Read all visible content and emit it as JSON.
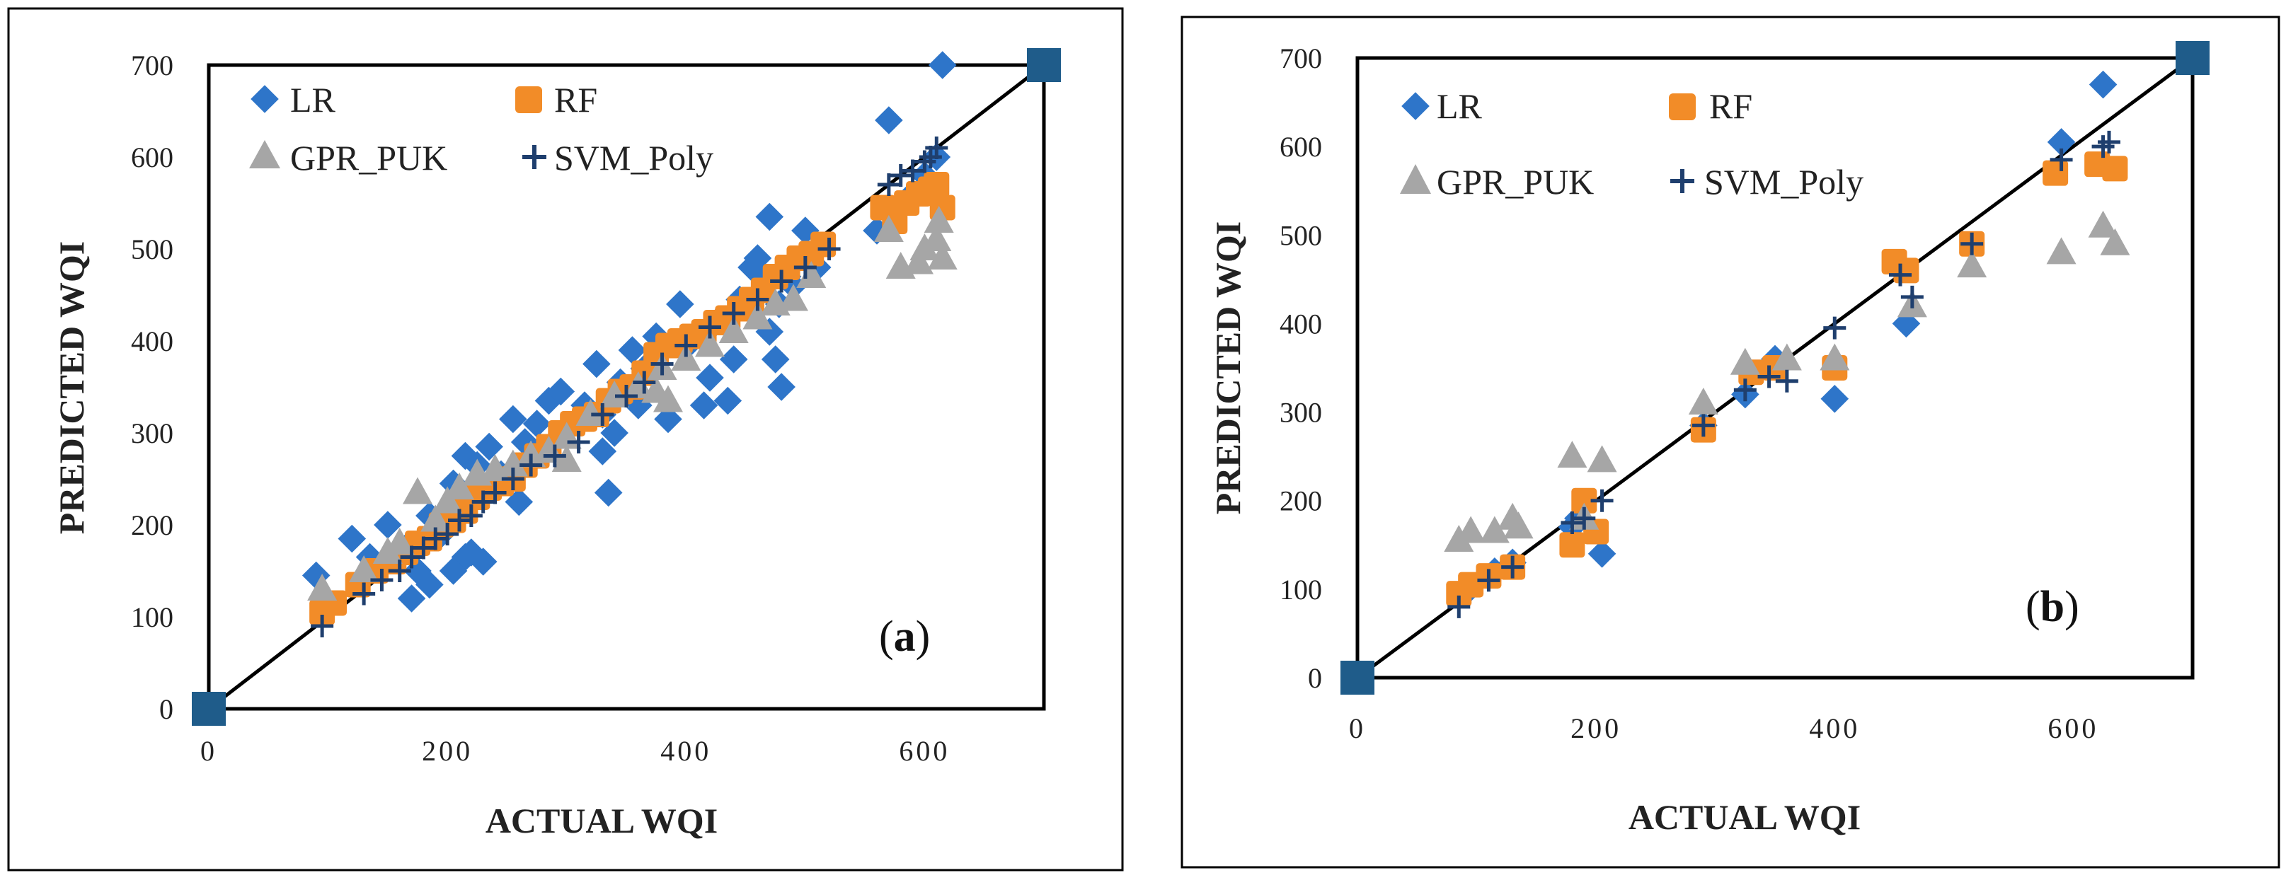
{
  "chart_data": [
    {
      "type": "scatter",
      "panel_label": "(a)",
      "panel_label_open": "(",
      "panel_label_letter": "a",
      "panel_label_close": ")",
      "xlabel": "ACTUAL WQI",
      "ylabel": "PREDICTED WQI",
      "xlim": [
        0,
        700
      ],
      "ylim": [
        0,
        700
      ],
      "xticks": [
        "0",
        "200",
        "400",
        "600"
      ],
      "yticks": [
        "0",
        "100",
        "200",
        "300",
        "400",
        "500",
        "600",
        "700"
      ],
      "legend": [
        "LR",
        "RF",
        "GPR_PUK",
        "SVM_Poly"
      ],
      "reference_line": [
        [
          0,
          0
        ],
        [
          700,
          700
        ]
      ],
      "series": [
        {
          "name": "LR",
          "color": "#2E75C9",
          "marker": "diamond",
          "x": [
            90,
            120,
            135,
            150,
            165,
            175,
            185,
            195,
            205,
            215,
            225,
            235,
            245,
            255,
            265,
            275,
            285,
            295,
            315,
            325,
            330,
            335,
            345,
            355,
            365,
            375,
            385,
            395,
            405,
            415,
            425,
            435,
            445,
            455,
            460,
            465,
            470,
            475,
            480,
            490,
            500,
            510,
            560,
            570,
            590,
            600,
            610,
            615,
            215,
            230,
            330,
            340,
            360,
            420,
            440,
            470,
            478,
            485,
            170,
            185,
            205,
            220,
            260
          ],
          "y": [
            145,
            185,
            165,
            200,
            175,
            150,
            210,
            190,
            245,
            275,
            265,
            285,
            255,
            315,
            290,
            310,
            335,
            345,
            330,
            375,
            280,
            235,
            355,
            390,
            370,
            405,
            315,
            440,
            400,
            330,
            420,
            335,
            445,
            480,
            490,
            470,
            535,
            380,
            350,
            460,
            520,
            480,
            520,
            640,
            560,
            580,
            600,
            700,
            165,
            160,
            320,
            300,
            330,
            360,
            380,
            410,
            440,
            470,
            120,
            135,
            150,
            170,
            225
          ]
        },
        {
          "name": "RF",
          "color": "#F28C28",
          "marker": "square",
          "x": [
            95,
            105,
            125,
            140,
            155,
            165,
            175,
            185,
            195,
            205,
            215,
            225,
            235,
            245,
            255,
            265,
            275,
            285,
            295,
            305,
            315,
            325,
            335,
            345,
            355,
            365,
            375,
            385,
            395,
            405,
            415,
            425,
            435,
            445,
            455,
            465,
            475,
            485,
            495,
            505,
            515,
            565,
            575,
            585,
            595,
            605,
            610,
            615
          ],
          "y": [
            105,
            115,
            135,
            150,
            160,
            170,
            180,
            185,
            200,
            205,
            215,
            230,
            240,
            245,
            250,
            265,
            275,
            285,
            300,
            310,
            315,
            320,
            335,
            345,
            350,
            365,
            385,
            395,
            400,
            405,
            410,
            420,
            425,
            435,
            445,
            455,
            470,
            480,
            490,
            495,
            505,
            545,
            530,
            550,
            560,
            565,
            570,
            545
          ]
        },
        {
          "name": "GPR_PUK",
          "color": "#A6A6A6",
          "marker": "triangle",
          "x": [
            95,
            130,
            150,
            160,
            175,
            190,
            200,
            210,
            225,
            240,
            255,
            270,
            285,
            300,
            320,
            340,
            360,
            375,
            385,
            400,
            420,
            440,
            460,
            475,
            490,
            505,
            570,
            580,
            595,
            600,
            610,
            612,
            615,
            380,
            300
          ],
          "y": [
            130,
            150,
            170,
            180,
            235,
            205,
            225,
            240,
            255,
            260,
            265,
            275,
            280,
            295,
            320,
            340,
            350,
            345,
            335,
            380,
            395,
            410,
            425,
            440,
            445,
            470,
            520,
            480,
            485,
            500,
            510,
            530,
            490,
            370,
            270
          ]
        },
        {
          "name": "SVM_Poly",
          "color": "#1F3F6E",
          "marker": "plus",
          "x": [
            95,
            130,
            145,
            160,
            170,
            180,
            190,
            200,
            210,
            220,
            230,
            240,
            255,
            270,
            290,
            310,
            330,
            350,
            365,
            380,
            400,
            420,
            440,
            460,
            480,
            500,
            520,
            570,
            580,
            590,
            600,
            605,
            610
          ],
          "y": [
            90,
            125,
            140,
            150,
            165,
            175,
            185,
            190,
            205,
            210,
            225,
            235,
            250,
            265,
            275,
            290,
            320,
            340,
            355,
            375,
            395,
            415,
            430,
            445,
            465,
            480,
            500,
            570,
            580,
            585,
            595,
            600,
            610
          ]
        }
      ]
    },
    {
      "type": "scatter",
      "panel_label": "(b)",
      "panel_label_open": "(",
      "panel_label_letter": "b",
      "panel_label_close": ")",
      "xlabel": "ACTUAL WQI",
      "ylabel": "PREDICTED WQI",
      "xlim": [
        0,
        700
      ],
      "ylim": [
        0,
        700
      ],
      "xticks": [
        "0",
        "200",
        "400",
        "600"
      ],
      "yticks": [
        "0",
        "100",
        "200",
        "300",
        "400",
        "500",
        "600",
        "700"
      ],
      "legend": [
        "LR",
        "RF",
        "GPR_PUK",
        "SVM_Poly"
      ],
      "reference_line": [
        [
          0,
          0
        ],
        [
          700,
          700
        ]
      ],
      "series": [
        {
          "name": "LR",
          "color": "#2E75C9",
          "marker": "diamond",
          "x": [
            90,
            115,
            130,
            180,
            185,
            205,
            290,
            325,
            350,
            400,
            460,
            590,
            625
          ],
          "y": [
            95,
            120,
            130,
            170,
            180,
            140,
            285,
            320,
            360,
            315,
            400,
            605,
            670
          ]
        },
        {
          "name": "RF",
          "color": "#F28C28",
          "marker": "square",
          "x": [
            85,
            95,
            110,
            130,
            180,
            190,
            200,
            290,
            330,
            350,
            400,
            450,
            460,
            515,
            585,
            620,
            635
          ],
          "y": [
            95,
            105,
            115,
            125,
            150,
            200,
            165,
            280,
            345,
            350,
            350,
            470,
            460,
            490,
            570,
            580,
            575
          ]
        },
        {
          "name": "GPR_PUK",
          "color": "#A6A6A6",
          "marker": "triangle",
          "x": [
            85,
            95,
            115,
            130,
            135,
            180,
            190,
            205,
            290,
            325,
            360,
            400,
            465,
            515,
            590,
            625,
            635
          ],
          "y": [
            155,
            165,
            165,
            180,
            170,
            250,
            180,
            245,
            310,
            355,
            360,
            360,
            420,
            465,
            480,
            510,
            490
          ]
        },
        {
          "name": "SVM_Poly",
          "color": "#1F3F6E",
          "marker": "plus",
          "x": [
            85,
            110,
            130,
            180,
            190,
            205,
            290,
            325,
            345,
            360,
            400,
            455,
            465,
            515,
            590,
            625,
            630
          ],
          "y": [
            80,
            110,
            125,
            175,
            180,
            200,
            285,
            325,
            340,
            335,
            395,
            455,
            430,
            490,
            585,
            600,
            605
          ]
        }
      ]
    }
  ]
}
